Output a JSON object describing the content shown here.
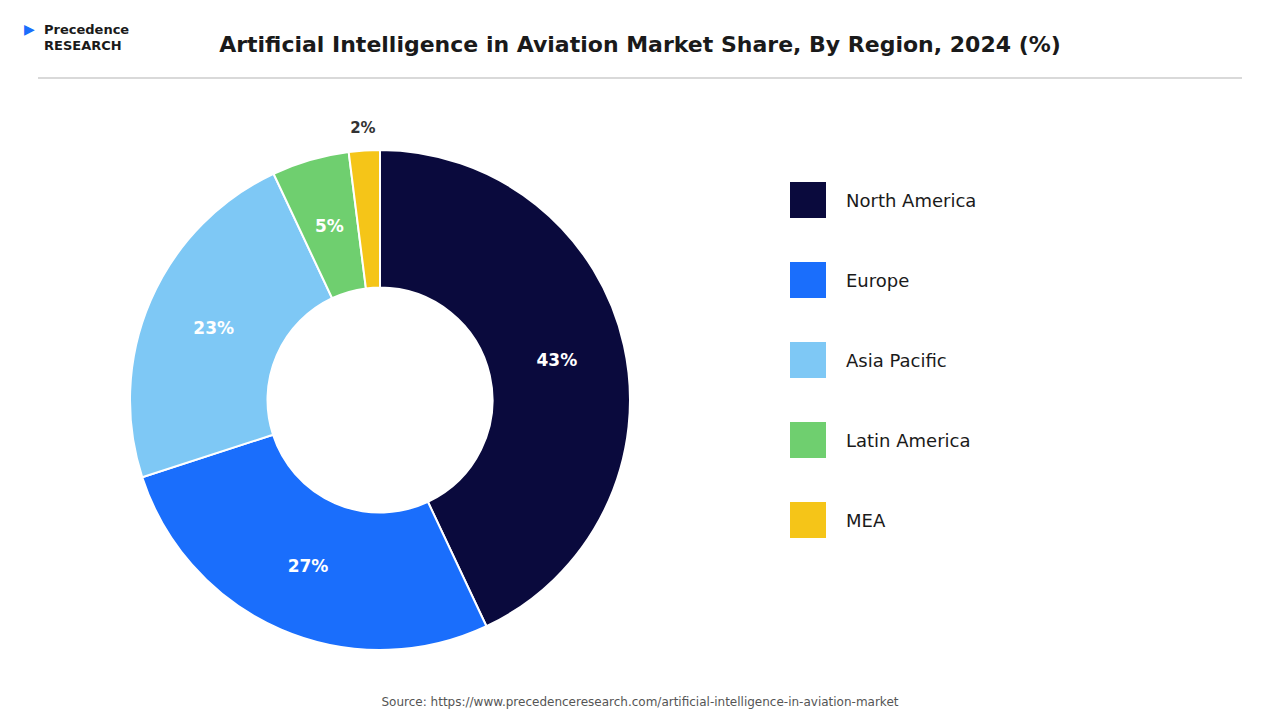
{
  "chart_data": {
    "type": "donut",
    "title": "Artificial Intelligence in Aviation Market Share, By Region, 2024 (%)",
    "categories": [
      "North America",
      "Europe",
      "Asia Pacific",
      "Latin America",
      "MEA"
    ],
    "values": [
      43,
      27,
      23,
      5,
      2
    ],
    "value_labels": [
      "43%",
      "27%",
      "23%",
      "5%",
      "2%"
    ],
    "colors": [
      "#0a0a3d",
      "#1a6efc",
      "#7ec8f5",
      "#6fcf6f",
      "#f5c518"
    ],
    "data_labels": true,
    "legend": "right",
    "annotations": [
      "Source: https://www.precedenceresearch.com/artificial-intelligence-in-aviation-market",
      "Precedence\nRESEARCH",
      "▶"
    ]
  }
}
